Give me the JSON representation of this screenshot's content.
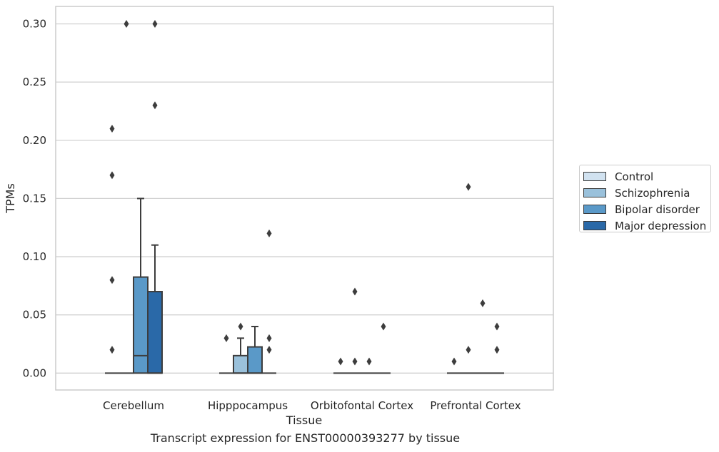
{
  "chart_data": {
    "type": "box",
    "xlabel": "Tissue",
    "ylabel": "TPMs",
    "caption": "Transcript expression for ENST00000393277 by tissue",
    "ylim": [
      -0.0145,
      0.315
    ],
    "yticks": [
      0.0,
      0.05,
      0.1,
      0.15,
      0.2,
      0.25,
      0.3
    ],
    "ytick_labels": [
      "0.00",
      "0.05",
      "0.10",
      "0.15",
      "0.20",
      "0.25",
      "0.30"
    ],
    "grid": "horizontal",
    "legend_position": "right",
    "categories": [
      "Cerebellum",
      "Hipppocampus",
      "Orbitofontal Cortex",
      "Prefrontal Cortex"
    ],
    "series": [
      {
        "name": "Control",
        "color": "#d1e2f0"
      },
      {
        "name": "Schizophrenia",
        "color": "#9ac1db"
      },
      {
        "name": "Bipolar disorder",
        "color": "#5a99c8"
      },
      {
        "name": "Major depression",
        "color": "#2a69a8"
      }
    ],
    "boxes": [
      [
        {
          "q1": 0,
          "median": 0,
          "q3": 0,
          "whisker_low": 0,
          "whisker_high": 0,
          "outliers": [
            0.02,
            0.08,
            0.17,
            0.21
          ]
        },
        {
          "q1": 0,
          "median": 0,
          "q3": 0,
          "whisker_low": 0,
          "whisker_high": 0,
          "outliers": [
            0.3
          ]
        },
        {
          "q1": 0,
          "median": 0.015,
          "q3": 0.0825,
          "whisker_low": 0,
          "whisker_high": 0.15,
          "outliers": []
        },
        {
          "q1": 0,
          "median": 0,
          "q3": 0.07,
          "whisker_low": 0,
          "whisker_high": 0.11,
          "outliers": [
            0.23,
            0.3
          ]
        }
      ],
      [
        {
          "q1": 0,
          "median": 0,
          "q3": 0,
          "whisker_low": 0,
          "whisker_high": 0,
          "outliers": [
            0.03
          ]
        },
        {
          "q1": 0,
          "median": 0,
          "q3": 0.015,
          "whisker_low": 0,
          "whisker_high": 0.03,
          "outliers": [
            0.04
          ]
        },
        {
          "q1": 0,
          "median": 0,
          "q3": 0.0225,
          "whisker_low": 0,
          "whisker_high": 0.04,
          "outliers": []
        },
        {
          "q1": 0,
          "median": 0,
          "q3": 0,
          "whisker_low": 0,
          "whisker_high": 0,
          "outliers": [
            0.02,
            0.03,
            0.12
          ]
        }
      ],
      [
        {
          "q1": 0,
          "median": 0,
          "q3": 0,
          "whisker_low": 0,
          "whisker_high": 0,
          "outliers": [
            0.01
          ]
        },
        {
          "q1": 0,
          "median": 0,
          "q3": 0,
          "whisker_low": 0,
          "whisker_high": 0,
          "outliers": [
            0.01,
            0.07
          ]
        },
        {
          "q1": 0,
          "median": 0,
          "q3": 0,
          "whisker_low": 0,
          "whisker_high": 0,
          "outliers": [
            0.01
          ]
        },
        {
          "q1": 0,
          "median": 0,
          "q3": 0,
          "whisker_low": 0,
          "whisker_high": 0,
          "outliers": [
            0.04
          ]
        }
      ],
      [
        {
          "q1": 0,
          "median": 0,
          "q3": 0,
          "whisker_low": 0,
          "whisker_high": 0,
          "outliers": [
            0.01
          ]
        },
        {
          "q1": 0,
          "median": 0,
          "q3": 0,
          "whisker_low": 0,
          "whisker_high": 0,
          "outliers": [
            0.02,
            0.16
          ]
        },
        {
          "q1": 0,
          "median": 0,
          "q3": 0,
          "whisker_low": 0,
          "whisker_high": 0,
          "outliers": [
            0.06
          ]
        },
        {
          "q1": 0,
          "median": 0,
          "q3": 0,
          "whisker_low": 0,
          "whisker_high": 0,
          "outliers": [
            0.02,
            0.04
          ]
        }
      ]
    ]
  }
}
